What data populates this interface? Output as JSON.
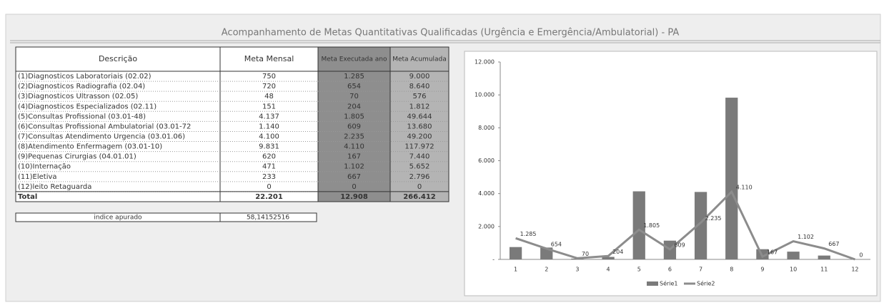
{
  "title": "Acompanhamento de Metas Quantitativas Qualificadas (Urgência e Emergência/Ambulatorial) - PA",
  "table": {
    "header": [
      "Descrição",
      "Meta Mensal",
      "Meta Executada ano",
      "Meta Acumulada"
    ],
    "rows": [
      [
        "(1)Diagnosticos Laboratoriais (02.02)",
        "750",
        "1.285",
        "9.000"
      ],
      [
        "(2)Diagnosticos Radiografia (02.04)",
        "720",
        "654",
        "8.640"
      ],
      [
        "(3)Diagnosticos Ultrasson (02.05)",
        "48",
        "70",
        "576"
      ],
      [
        "(4)Diagnosticos Especializados (02.11)",
        "151",
        "204",
        "1.812"
      ],
      [
        "(5)Consultas Profissional (03.01-48)",
        "4.137",
        "1.805",
        "49.644"
      ],
      [
        "(6)Consultas Profissional Ambulatorial (03.01-72",
        "1.140",
        "609",
        "13.680"
      ],
      [
        "(7)Consultas Atendimento Urgencia (03.01.06)",
        "4.100",
        "2.235",
        "49.200"
      ],
      [
        "(8)Atendimento Enfermagem (03.01-10)",
        "9.831",
        "4.110",
        "117.972"
      ],
      [
        "(9)Pequenas Cirurgias (04.01.01)",
        "620",
        "167",
        "7.440"
      ],
      [
        "(10)Internação",
        "471",
        "1.102",
        "5.652"
      ],
      [
        "(11)Eletiva",
        "233",
        "667",
        "2.796"
      ],
      [
        "(12)leito Retaguarda",
        "0",
        "0",
        "0"
      ],
      [
        "Total",
        "22.201",
        "12.908",
        "266.412"
      ]
    ],
    "index": {
      "label": "indice apurado",
      "value": "58,14152516"
    }
  },
  "chart_data": {
    "type": "bar-line",
    "categories": [
      "1",
      "2",
      "3",
      "4",
      "5",
      "6",
      "7",
      "8",
      "9",
      "10",
      "11",
      "12"
    ],
    "series": [
      {
        "name": "Série1",
        "type": "bar",
        "color": "#7a7a7a",
        "values": [
          750,
          720,
          48,
          151,
          4137,
          1140,
          4100,
          9831,
          620,
          471,
          233,
          0
        ]
      },
      {
        "name": "Série2",
        "type": "line",
        "color": "#8c8c8c",
        "values": [
          1285,
          654,
          70,
          204,
          1805,
          609,
          2235,
          4110,
          167,
          1102,
          667,
          0
        ],
        "value_labels": [
          "1.285",
          "654",
          "70",
          "204",
          "1.805",
          "609",
          "2.235",
          "4.110",
          "167",
          "1.102",
          "667",
          "0"
        ]
      }
    ],
    "ylim": [
      0,
      12000
    ],
    "yticks": [
      {
        "value": 0,
        "label": "-"
      },
      {
        "value": 2000,
        "label": "2.000"
      },
      {
        "value": 4000,
        "label": "4.000"
      },
      {
        "value": 6000,
        "label": "6.000"
      },
      {
        "value": 8000,
        "label": "8.000"
      },
      {
        "value": 10000,
        "label": "10.000"
      },
      {
        "value": 12000,
        "label": "12.000"
      }
    ],
    "grid": false,
    "legend": "bottom"
  }
}
